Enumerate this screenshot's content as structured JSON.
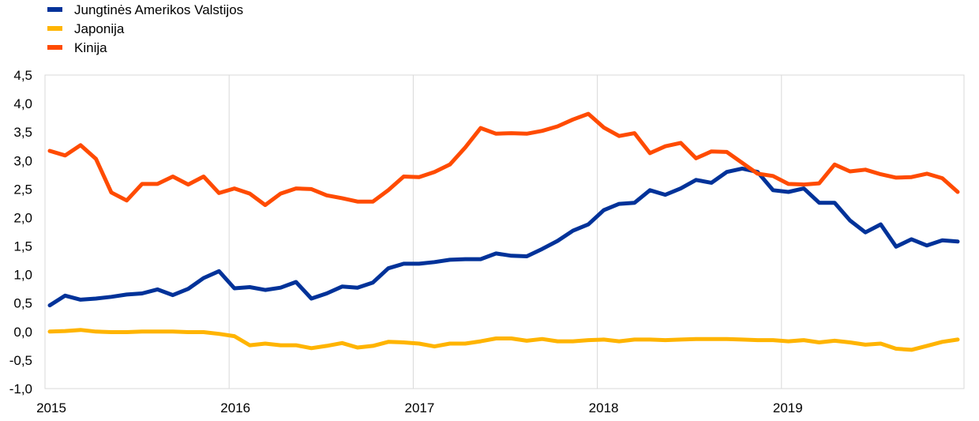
{
  "chart_data": {
    "type": "line",
    "title": "",
    "xlabel": "",
    "ylabel": "",
    "ylim": [
      -1.0,
      4.5
    ],
    "yticks": [
      "4,5",
      "4,0",
      "3,5",
      "3,0",
      "2,5",
      "2,0",
      "1,5",
      "1,0",
      "0,5",
      "0,0",
      "-0,5",
      "-1,0"
    ],
    "ytick_values": [
      4.5,
      4.0,
      3.5,
      3.0,
      2.5,
      2.0,
      1.5,
      1.0,
      0.5,
      0.0,
      -0.5,
      -1.0
    ],
    "xticks": [
      "2015",
      "2016",
      "2017",
      "2018",
      "2019"
    ],
    "x_start": "2015-01",
    "x_end": "2019-12",
    "grid": "vertical at year boundaries",
    "legend_position": "top-left",
    "series": [
      {
        "name": "Jungtinės Amerikos Valstijos",
        "color": "#003299",
        "values": [
          0.46,
          0.63,
          0.56,
          0.58,
          0.61,
          0.65,
          0.67,
          0.74,
          0.64,
          0.75,
          0.94,
          1.06,
          0.76,
          0.78,
          0.73,
          0.77,
          0.87,
          0.58,
          0.67,
          0.79,
          0.77,
          0.86,
          1.11,
          1.19,
          1.19,
          1.22,
          1.26,
          1.27,
          1.27,
          1.37,
          1.33,
          1.32,
          1.45,
          1.59,
          1.77,
          1.88,
          2.13,
          2.24,
          2.26,
          2.48,
          2.4,
          2.51,
          2.66,
          2.61,
          2.8,
          2.86,
          2.8,
          2.48,
          2.45,
          2.51,
          2.26,
          2.26,
          1.95,
          1.74,
          1.88,
          1.49,
          1.62,
          1.51,
          1.6,
          1.58
        ]
      },
      {
        "name": "Japonija",
        "color": "#FFB400",
        "values": [
          0.0,
          0.01,
          0.03,
          0.0,
          -0.01,
          -0.01,
          0.0,
          0.0,
          0.0,
          -0.01,
          -0.01,
          -0.04,
          -0.08,
          -0.24,
          -0.21,
          -0.24,
          -0.24,
          -0.29,
          -0.25,
          -0.2,
          -0.28,
          -0.25,
          -0.18,
          -0.19,
          -0.21,
          -0.26,
          -0.21,
          -0.21,
          -0.17,
          -0.12,
          -0.12,
          -0.16,
          -0.13,
          -0.17,
          -0.17,
          -0.15,
          -0.14,
          -0.17,
          -0.14,
          -0.14,
          -0.15,
          -0.14,
          -0.13,
          -0.13,
          -0.13,
          -0.14,
          -0.15,
          -0.15,
          -0.17,
          -0.15,
          -0.19,
          -0.16,
          -0.19,
          -0.23,
          -0.21,
          -0.3,
          -0.32,
          -0.25,
          -0.18,
          -0.14
        ]
      },
      {
        "name": "Kinija",
        "color": "#FF4B00",
        "values": [
          3.17,
          3.09,
          3.27,
          3.03,
          2.44,
          2.3,
          2.59,
          2.59,
          2.72,
          2.58,
          2.72,
          2.43,
          2.51,
          2.42,
          2.22,
          2.42,
          2.51,
          2.5,
          2.39,
          2.34,
          2.28,
          2.28,
          2.48,
          2.72,
          2.71,
          2.8,
          2.93,
          3.23,
          3.57,
          3.47,
          3.48,
          3.47,
          3.52,
          3.6,
          3.72,
          3.82,
          3.58,
          3.43,
          3.48,
          3.13,
          3.25,
          3.31,
          3.04,
          3.16,
          3.15,
          2.96,
          2.77,
          2.73,
          2.59,
          2.58,
          2.6,
          2.93,
          2.81,
          2.84,
          2.76,
          2.7,
          2.71,
          2.77,
          2.69,
          2.45
        ]
      }
    ]
  }
}
